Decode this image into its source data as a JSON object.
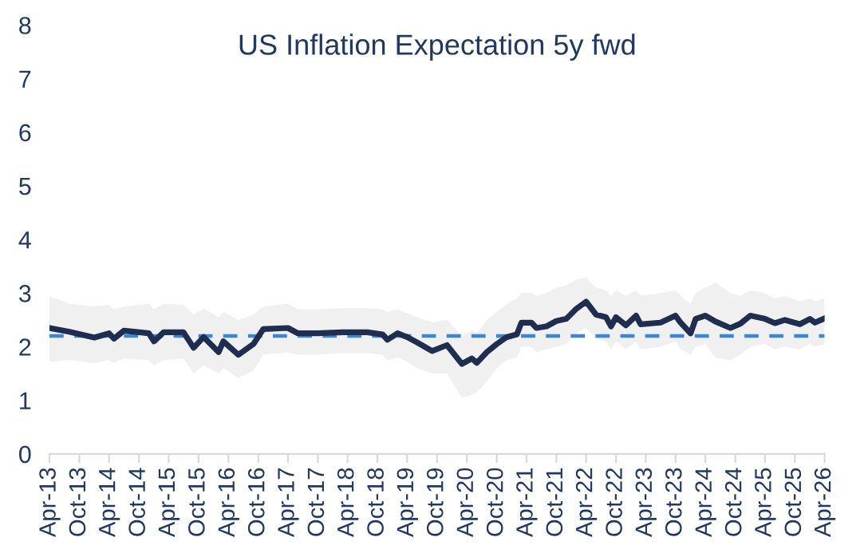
{
  "chart_data": {
    "type": "line",
    "title": "US Inflation Expectation 5y fwd",
    "x": [
      "2013-04",
      "2013-08",
      "2014-01",
      "2014-04",
      "2014-05",
      "2014-07",
      "2014-12",
      "2015-01",
      "2015-03",
      "2015-07",
      "2015-09",
      "2015-11",
      "2016-02",
      "2016-03",
      "2016-06",
      "2016-09",
      "2016-11",
      "2017-04",
      "2017-06",
      "2017-10",
      "2018-03",
      "2018-08",
      "2018-11",
      "2018-12",
      "2019-02",
      "2019-04",
      "2019-06",
      "2019-09",
      "2019-12",
      "2020-03",
      "2020-05",
      "2020-06",
      "2020-08",
      "2020-10",
      "2020-12",
      "2021-02",
      "2021-03",
      "2021-05",
      "2021-06",
      "2021-08",
      "2021-10",
      "2021-12",
      "2022-02",
      "2022-04",
      "2022-06",
      "2022-08",
      "2022-09",
      "2022-10",
      "2022-12",
      "2023-02",
      "2023-03",
      "2023-07",
      "2023-10",
      "2023-11",
      "2024-01",
      "2024-02",
      "2024-04",
      "2024-06",
      "2024-09",
      "2024-11",
      "2025-01",
      "2025-04",
      "2025-06",
      "2025-08",
      "2025-11",
      "2026-01",
      "2026-02",
      "2026-04"
    ],
    "series": [
      {
        "color": "#1f2d50",
        "values": [
          2.35,
          2.28,
          2.17,
          2.25,
          2.15,
          2.3,
          2.25,
          2.1,
          2.27,
          2.27,
          1.98,
          2.18,
          1.9,
          2.1,
          1.85,
          2.05,
          2.33,
          2.35,
          2.25,
          2.25,
          2.27,
          2.27,
          2.23,
          2.13,
          2.25,
          2.18,
          2.08,
          1.92,
          2.03,
          1.68,
          1.78,
          1.7,
          1.9,
          2.05,
          2.18,
          2.23,
          2.45,
          2.45,
          2.35,
          2.38,
          2.48,
          2.52,
          2.71,
          2.84,
          2.6,
          2.55,
          2.38,
          2.55,
          2.4,
          2.58,
          2.42,
          2.45,
          2.58,
          2.45,
          2.25,
          2.52,
          2.58,
          2.47,
          2.35,
          2.43,
          2.58,
          2.52,
          2.44,
          2.5,
          2.42,
          2.52,
          2.45,
          2.53
        ],
        "upper": [
          2.94,
          2.8,
          2.75,
          2.78,
          2.7,
          2.75,
          2.8,
          2.7,
          2.8,
          2.78,
          2.6,
          2.72,
          2.55,
          2.65,
          2.5,
          2.6,
          2.75,
          2.8,
          2.7,
          2.7,
          2.72,
          2.72,
          2.7,
          2.65,
          2.7,
          2.62,
          2.55,
          2.45,
          2.5,
          2.2,
          2.3,
          2.25,
          2.5,
          2.65,
          2.8,
          2.9,
          3.0,
          3.0,
          2.95,
          3.0,
          3.1,
          3.15,
          3.25,
          3.3,
          3.1,
          3.05,
          2.95,
          3.05,
          2.95,
          3.05,
          2.95,
          3.0,
          3.05,
          2.95,
          2.8,
          3.0,
          3.1,
          3.2,
          3.0,
          2.95,
          3.05,
          3.0,
          2.9,
          2.95,
          2.85,
          2.9,
          2.85,
          2.9
        ],
        "lower": [
          1.72,
          1.75,
          1.7,
          1.75,
          1.7,
          1.78,
          1.75,
          1.65,
          1.75,
          1.78,
          1.5,
          1.65,
          1.5,
          1.6,
          1.42,
          1.55,
          1.85,
          1.9,
          1.85,
          1.85,
          1.88,
          1.88,
          1.85,
          1.75,
          1.8,
          1.72,
          1.6,
          1.5,
          1.5,
          1.05,
          1.1,
          1.15,
          1.35,
          1.6,
          1.75,
          1.8,
          2.0,
          2.0,
          1.9,
          1.95,
          2.0,
          2.05,
          2.25,
          2.35,
          2.15,
          2.1,
          1.95,
          2.1,
          1.95,
          2.1,
          1.95,
          2.0,
          2.1,
          1.95,
          1.85,
          2.0,
          2.05,
          1.8,
          1.75,
          1.85,
          2.0,
          2.05,
          1.95,
          2.0,
          1.95,
          2.05,
          2.0,
          2.05
        ]
      }
    ],
    "ref_lines": [
      {
        "axis": "y",
        "value": 2.2,
        "color": "#3a87d6",
        "line_style": "dashed"
      }
    ],
    "xlim": [
      "2013-04",
      "2026-04"
    ],
    "xticks": [
      {
        "value": "2013-04",
        "label": "Apr-13"
      },
      {
        "value": "2013-10",
        "label": "Oct-13"
      },
      {
        "value": "2014-04",
        "label": "Apr-14"
      },
      {
        "value": "2014-10",
        "label": "Oct-14"
      },
      {
        "value": "2015-04",
        "label": "Apr-15"
      },
      {
        "value": "2015-10",
        "label": "Oct-15"
      },
      {
        "value": "2016-04",
        "label": "Apr-16"
      },
      {
        "value": "2016-10",
        "label": "Oct-16"
      },
      {
        "value": "2017-04",
        "label": "Apr-17"
      },
      {
        "value": "2017-10",
        "label": "Oct-17"
      },
      {
        "value": "2018-04",
        "label": "Apr-18"
      },
      {
        "value": "2018-10",
        "label": "Oct-18"
      },
      {
        "value": "2019-04",
        "label": "Apr-19"
      },
      {
        "value": "2019-10",
        "label": "Oct-19"
      },
      {
        "value": "2020-04",
        "label": "Apr-20"
      },
      {
        "value": "2020-10",
        "label": "Oct-20"
      },
      {
        "value": "2021-04",
        "label": "Apr-21"
      },
      {
        "value": "2021-10",
        "label": "Oct-21"
      },
      {
        "value": "2022-04",
        "label": "Apr-22"
      },
      {
        "value": "2022-10",
        "label": "Oct-22"
      },
      {
        "value": "2023-04",
        "label": "Apr-23"
      },
      {
        "value": "2023-10",
        "label": "Oct-23"
      },
      {
        "value": "2024-04",
        "label": "Apr-24"
      },
      {
        "value": "2024-10",
        "label": "Oct-24"
      },
      {
        "value": "2025-04",
        "label": "Apr-25"
      },
      {
        "value": "2025-10",
        "label": "Oct-25"
      },
      {
        "value": "2026-04",
        "label": "Apr-26"
      }
    ],
    "ylim": [
      0,
      8
    ],
    "yticks": [
      0,
      1,
      2,
      3,
      4,
      5,
      6,
      7,
      8
    ],
    "marker": "none",
    "line_style": "solid"
  }
}
